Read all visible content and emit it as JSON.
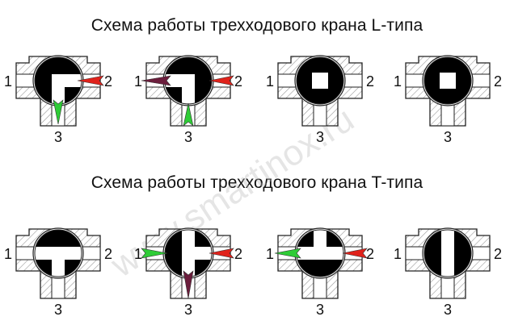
{
  "titles": {
    "l_type": "Схема работы трехходового крана L-типа",
    "t_type": "Схема работы трехходового крана T-типа"
  },
  "port_labels": {
    "left": "1",
    "right": "2",
    "bottom": "3"
  },
  "watermark": "www.smartinox.ru",
  "colors": {
    "red_arrow": "#e0221b",
    "green_arrow": "#2ecc36",
    "purple_arrow": "#6b1d3c",
    "body_hatch": "#9a9a9a",
    "ball": "#000000"
  },
  "rows": [
    {
      "name": "L-type valve",
      "positions": [
        {
          "ball": "L-bore right-bottom",
          "arrows": [
            "red from port 2",
            "green to port 3"
          ]
        },
        {
          "ball": "L-bore left-bottom",
          "arrows": [
            "purple to port 1",
            "red from port 2",
            "green from port 3"
          ]
        },
        {
          "ball": "L-bore closed",
          "arrows": []
        },
        {
          "ball": "L-bore closed",
          "arrows": []
        }
      ]
    },
    {
      "name": "T-type valve",
      "positions": [
        {
          "ball": "T-bore left-right-bottom",
          "arrows": []
        },
        {
          "ball": "T-bore vertical",
          "arrows": [
            "green to port 1",
            "red from port 2",
            "purple to port 3"
          ]
        },
        {
          "ball": "T-bore left-right-top",
          "arrows": [
            "green to port 1",
            "red from port 2"
          ]
        },
        {
          "ball": "T-bore closed",
          "arrows": []
        }
      ]
    }
  ]
}
